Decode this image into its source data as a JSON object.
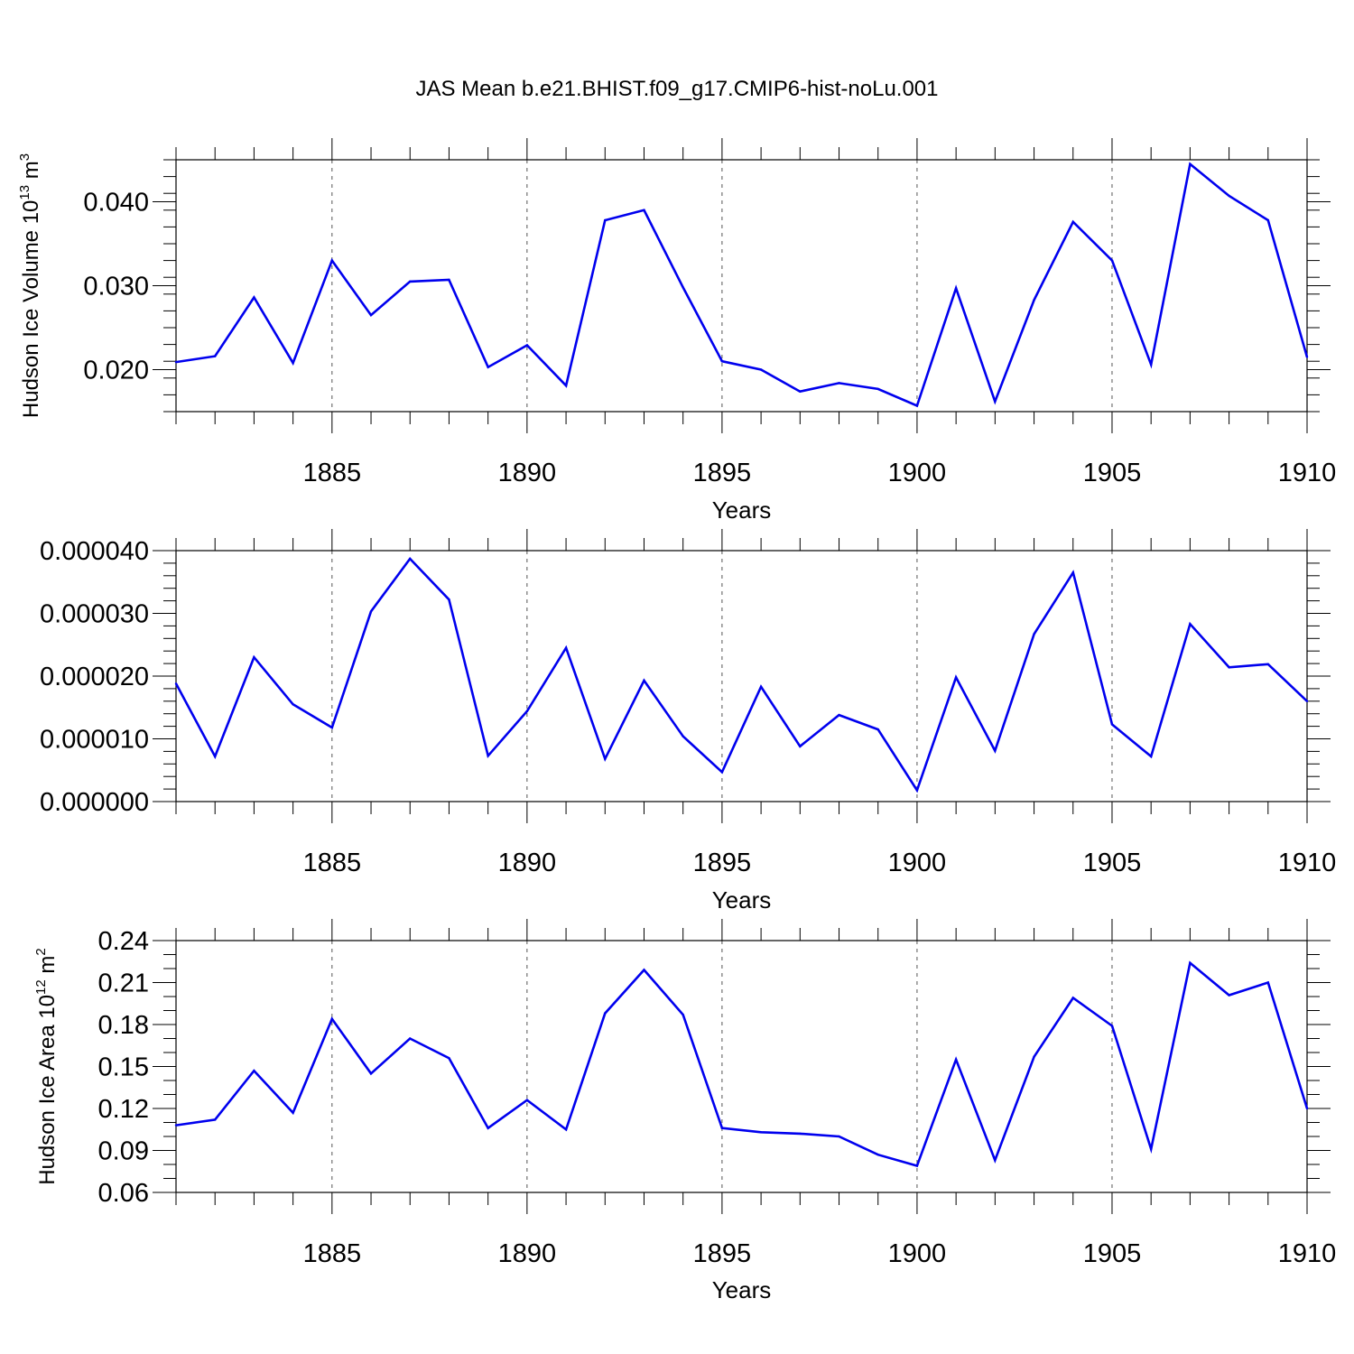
{
  "title": "JAS Mean b.e21.BHIST.f09_g17.CMIP6-hist-noLu.001",
  "chart_data": [
    {
      "type": "line",
      "ylabel": {
        "main": "Hudson Ice Volume 10",
        "exp": "13",
        "unit": " m",
        "unit_exp": "3"
      },
      "xlabel": "Years",
      "xlim": [
        1881,
        1910
      ],
      "ylim": [
        0.015,
        0.045
      ],
      "yticks": [
        0.02,
        0.03,
        0.04
      ],
      "ytick_labels": [
        "0.020",
        "0.030",
        "0.040"
      ],
      "y_minor_step": 0.002,
      "xticks": [
        1885,
        1890,
        1895,
        1900,
        1905,
        1910
      ],
      "xtick_labels": [
        "1885",
        "1890",
        "1895",
        "1900",
        "1905",
        "1910"
      ],
      "color": "#0000ee",
      "x": [
        1881,
        1882,
        1883,
        1884,
        1885,
        1886,
        1887,
        1888,
        1889,
        1890,
        1891,
        1892,
        1893,
        1894,
        1895,
        1896,
        1897,
        1898,
        1899,
        1900,
        1901,
        1902,
        1903,
        1904,
        1905,
        1906,
        1907,
        1908,
        1909,
        1910
      ],
      "y": [
        0.0209,
        0.0216,
        0.0286,
        0.0208,
        0.033,
        0.0265,
        0.0305,
        0.0307,
        0.0203,
        0.0229,
        0.0181,
        0.0378,
        0.039,
        0.0298,
        0.021,
        0.02,
        0.0174,
        0.0184,
        0.0177,
        0.0157,
        0.0297,
        0.0162,
        0.0283,
        0.0376,
        0.033,
        0.0206,
        0.0445,
        0.0407,
        0.0378,
        0.0215
      ]
    },
    {
      "type": "line",
      "ylabel": null,
      "xlabel": "Years",
      "xlim": [
        1881,
        1910
      ],
      "ylim": [
        0.0,
        4e-05
      ],
      "yticks": [
        0.0,
        1e-05,
        2e-05,
        3e-05,
        4e-05
      ],
      "ytick_labels": [
        "0.000000",
        "0.000010",
        "0.000020",
        "0.000030",
        "0.000040"
      ],
      "y_minor_step": 2e-06,
      "xticks": [
        1885,
        1890,
        1895,
        1900,
        1905,
        1910
      ],
      "xtick_labels": [
        "1885",
        "1890",
        "1895",
        "1900",
        "1905",
        "1910"
      ],
      "color": "#0000ee",
      "x": [
        1881,
        1882,
        1883,
        1884,
        1885,
        1886,
        1887,
        1888,
        1889,
        1890,
        1891,
        1892,
        1893,
        1894,
        1895,
        1896,
        1897,
        1898,
        1899,
        1900,
        1901,
        1902,
        1903,
        1904,
        1905,
        1906,
        1907,
        1908,
        1909,
        1910
      ],
      "y": [
        1.88e-05,
        7.2e-06,
        2.3e-05,
        1.55e-05,
        1.18e-05,
        3.03e-05,
        3.87e-05,
        3.22e-05,
        7.3e-06,
        1.44e-05,
        2.45e-05,
        6.8e-06,
        1.93e-05,
        1.04e-05,
        4.7e-06,
        1.83e-05,
        8.8e-06,
        1.38e-05,
        1.15e-05,
        1.8e-06,
        1.98e-05,
        8.1e-06,
        2.67e-05,
        3.65e-05,
        1.23e-05,
        7.2e-06,
        2.83e-05,
        2.14e-05,
        2.19e-05,
        1.6e-05
      ]
    },
    {
      "type": "line",
      "ylabel": {
        "main": "Hudson Ice Area 10",
        "exp": "12",
        "unit": " m",
        "unit_exp": "2"
      },
      "xlabel": "Years",
      "xlim": [
        1881,
        1910
      ],
      "ylim": [
        0.06,
        0.24
      ],
      "yticks": [
        0.06,
        0.09,
        0.12,
        0.15,
        0.18,
        0.21,
        0.24
      ],
      "ytick_labels": [
        "0.06",
        "0.09",
        "0.12",
        "0.15",
        "0.18",
        "0.21",
        "0.24"
      ],
      "y_minor_step": 0.01,
      "xticks": [
        1885,
        1890,
        1895,
        1900,
        1905,
        1910
      ],
      "xtick_labels": [
        "1885",
        "1890",
        "1895",
        "1900",
        "1905",
        "1910"
      ],
      "color": "#0000ee",
      "x": [
        1881,
        1882,
        1883,
        1884,
        1885,
        1886,
        1887,
        1888,
        1889,
        1890,
        1891,
        1892,
        1893,
        1894,
        1895,
        1896,
        1897,
        1898,
        1899,
        1900,
        1901,
        1902,
        1903,
        1904,
        1905,
        1906,
        1907,
        1908,
        1909,
        1910
      ],
      "y": [
        0.108,
        0.112,
        0.147,
        0.117,
        0.184,
        0.145,
        0.17,
        0.156,
        0.106,
        0.126,
        0.105,
        0.188,
        0.219,
        0.187,
        0.106,
        0.103,
        0.102,
        0.1,
        0.087,
        0.079,
        0.155,
        0.083,
        0.157,
        0.199,
        0.179,
        0.091,
        0.224,
        0.201,
        0.21,
        0.12
      ]
    }
  ]
}
